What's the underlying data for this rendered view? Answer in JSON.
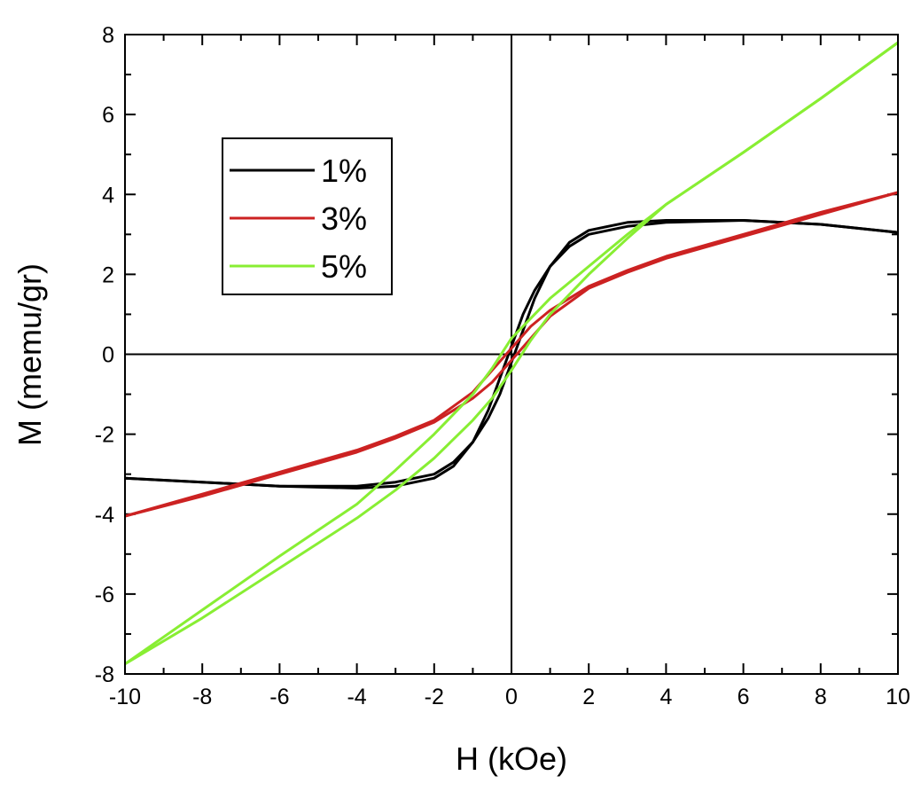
{
  "chart_data": {
    "type": "line",
    "xlabel": "H (kOe)",
    "ylabel": "M (memu/gr)",
    "xlim": [
      -10,
      10
    ],
    "ylim": [
      -8,
      8
    ],
    "xticks": [
      -10,
      -8,
      -6,
      -4,
      -2,
      0,
      2,
      4,
      6,
      8,
      10
    ],
    "yticks": [
      -8,
      -6,
      -4,
      -2,
      0,
      2,
      4,
      6,
      8
    ],
    "grid": false,
    "zero_lines": true,
    "legend_position": "upper-left",
    "series": [
      {
        "name": "1%",
        "color": "#000000",
        "branches": [
          {
            "x": [
              -10,
              -8,
              -6,
              -4,
              -3,
              -2,
              -1.5,
              -1,
              -0.6,
              -0.3,
              0,
              0.3,
              0.6,
              1,
              1.5,
              2,
              3,
              4,
              6,
              8,
              10
            ],
            "y": [
              -3.1,
              -3.2,
              -3.3,
              -3.3,
              -3.2,
              -3.0,
              -2.7,
              -2.2,
              -1.6,
              -1.0,
              -0.2,
              0.6,
              1.4,
              2.2,
              2.8,
              3.1,
              3.3,
              3.35,
              3.35,
              3.25,
              3.05
            ]
          },
          {
            "x": [
              10,
              8,
              6,
              4,
              3,
              2,
              1.5,
              1,
              0.6,
              0.3,
              0,
              -0.3,
              -0.6,
              -1,
              -1.5,
              -2,
              -3,
              -4,
              -6,
              -8,
              -10
            ],
            "y": [
              3.05,
              3.25,
              3.35,
              3.3,
              3.2,
              3.0,
              2.7,
              2.2,
              1.6,
              1.0,
              0.2,
              -0.6,
              -1.4,
              -2.2,
              -2.8,
              -3.1,
              -3.3,
              -3.35,
              -3.3,
              -3.2,
              -3.1
            ]
          }
        ]
      },
      {
        "name": "3%",
        "color": "#cc2222",
        "branches": [
          {
            "x": [
              -10,
              -8,
              -6,
              -4,
              -3,
              -2,
              -1,
              -0.5,
              0,
              0.5,
              1,
              2,
              3,
              4,
              6,
              8,
              10
            ],
            "y": [
              -4.05,
              -3.55,
              -3.0,
              -2.45,
              -2.1,
              -1.7,
              -1.1,
              -0.7,
              -0.15,
              0.4,
              0.95,
              1.65,
              2.05,
              2.4,
              2.95,
              3.5,
              4.05
            ]
          },
          {
            "x": [
              10,
              8,
              6,
              4,
              3,
              2,
              1,
              0.5,
              0,
              -0.5,
              -1,
              -2,
              -3,
              -4,
              -6,
              -8,
              -10
            ],
            "y": [
              4.05,
              3.55,
              3.0,
              2.45,
              2.1,
              1.7,
              1.1,
              0.7,
              0.15,
              -0.4,
              -0.95,
              -1.65,
              -2.05,
              -2.4,
              -2.95,
              -3.5,
              -4.05
            ]
          }
        ]
      },
      {
        "name": "5%",
        "color": "#88ee33",
        "branches": [
          {
            "x": [
              -10,
              -8,
              -6,
              -4,
              -3,
              -2,
              -1,
              -0.5,
              0,
              0.5,
              1,
              2,
              3,
              4,
              6,
              8,
              10
            ],
            "y": [
              -7.75,
              -6.6,
              -5.35,
              -4.1,
              -3.4,
              -2.6,
              -1.65,
              -1.1,
              -0.4,
              0.35,
              1.0,
              2.0,
              2.9,
              3.75,
              5.05,
              6.4,
              7.8
            ]
          },
          {
            "x": [
              10,
              8,
              6,
              4,
              3,
              2,
              1,
              0.5,
              0,
              -0.5,
              -1,
              -2,
              -3,
              -4,
              -6,
              -8,
              -10
            ],
            "y": [
              7.8,
              6.4,
              5.05,
              3.75,
              3.0,
              2.2,
              1.4,
              0.9,
              0.4,
              -0.35,
              -1.0,
              -2.0,
              -2.9,
              -3.75,
              -5.05,
              -6.4,
              -7.75
            ]
          }
        ]
      }
    ]
  }
}
